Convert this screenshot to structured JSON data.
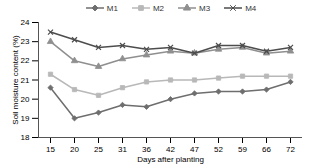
{
  "chart_data": {
    "type": "line",
    "x_label": "Days after planting",
    "y_label": "Soil moisture content (%)",
    "categories": [
      "15",
      "20",
      "25",
      "31",
      "36",
      "42",
      "47",
      "52",
      "59",
      "66",
      "72"
    ],
    "ylim": [
      18,
      24
    ],
    "yticks": [
      18,
      19,
      20,
      21,
      22,
      23,
      24
    ],
    "legend": "top",
    "series": [
      {
        "name": "M1",
        "color": "#6e6e6e",
        "marker": "diamond",
        "values": [
          20.6,
          19.0,
          19.3,
          19.7,
          19.6,
          20.0,
          20.3,
          20.4,
          20.4,
          20.5,
          20.9
        ]
      },
      {
        "name": "M2",
        "color": "#b8b8b8",
        "marker": "square",
        "values": [
          21.3,
          20.5,
          20.2,
          20.6,
          20.9,
          21.0,
          21.0,
          21.1,
          21.2,
          21.2,
          21.2
        ]
      },
      {
        "name": "M3",
        "color": "#8f8f8f",
        "marker": "triangle",
        "values": [
          23.0,
          22.0,
          21.7,
          22.1,
          22.3,
          22.5,
          22.4,
          22.6,
          22.7,
          22.4,
          22.5
        ]
      },
      {
        "name": "M4",
        "color": "#4d4d4d",
        "marker": "times",
        "values": [
          23.5,
          23.1,
          22.7,
          22.8,
          22.6,
          22.7,
          22.4,
          22.8,
          22.8,
          22.5,
          22.7
        ]
      }
    ]
  }
}
